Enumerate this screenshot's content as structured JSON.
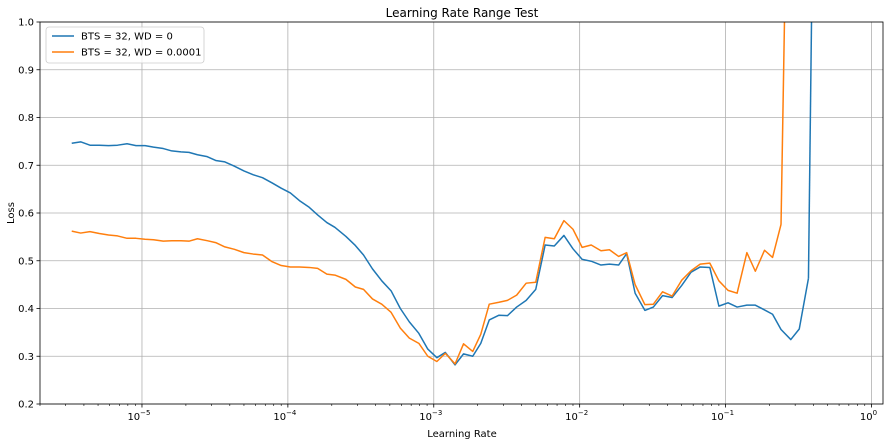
{
  "chart_data": {
    "type": "line",
    "title": "Learning Rate Range Test",
    "xlabel": "Learning Rate",
    "ylabel": "Loss",
    "x_scale": "log",
    "xlim": [
      2e-06,
      1.2
    ],
    "ylim": [
      0.2,
      1.0
    ],
    "x_ticks": [
      {
        "value": 1e-05,
        "base": "10",
        "exp": "−5"
      },
      {
        "value": 0.0001,
        "base": "10",
        "exp": "−4"
      },
      {
        "value": 0.001,
        "base": "10",
        "exp": "−3"
      },
      {
        "value": 0.01,
        "base": "10",
        "exp": "−2"
      },
      {
        "value": 0.1,
        "base": "10",
        "exp": "−1"
      },
      {
        "value": 1,
        "base": "10",
        "exp": "0"
      }
    ],
    "y_ticks": [
      "0.2",
      "0.3",
      "0.4",
      "0.5",
      "0.6",
      "0.7",
      "0.8",
      "0.9",
      "1.0"
    ],
    "grid": true,
    "legend_position": "top-left",
    "series": [
      {
        "name": "BTS = 32, WD = 0",
        "color": "#1f77b4",
        "x": [
          3.3e-06,
          3.8e-06,
          4.4e-06,
          5.1e-06,
          5.9e-06,
          6.8e-06,
          7.9e-06,
          9.1e-06,
          1.05e-05,
          1.2e-05,
          1.4e-05,
          1.6e-05,
          1.85e-05,
          2.1e-05,
          2.4e-05,
          2.8e-05,
          3.2e-05,
          3.7e-05,
          4.3e-05,
          5e-05,
          5.8e-05,
          6.7e-05,
          7.8e-05,
          9e-05,
          0.000104,
          0.00012,
          0.00014,
          0.00016,
          0.000185,
          0.00021,
          0.00025,
          0.00029,
          0.00033,
          0.00038,
          0.00044,
          0.00051,
          0.00059,
          0.00068,
          0.00079,
          0.00091,
          0.00105,
          0.0012,
          0.0014,
          0.0016,
          0.00185,
          0.0021,
          0.0024,
          0.0028,
          0.0032,
          0.0037,
          0.0043,
          0.005,
          0.0058,
          0.0067,
          0.0078,
          0.009,
          0.0104,
          0.012,
          0.014,
          0.016,
          0.0185,
          0.021,
          0.024,
          0.028,
          0.032,
          0.037,
          0.043,
          0.05,
          0.058,
          0.067,
          0.078,
          0.09,
          0.104,
          0.12,
          0.14,
          0.16,
          0.185,
          0.21,
          0.24,
          0.28,
          0.32,
          0.37
        ],
        "y": [
          0.746,
          0.749,
          0.742,
          0.742,
          0.741,
          0.742,
          0.745,
          0.741,
          0.741,
          0.738,
          0.735,
          0.73,
          0.728,
          0.727,
          0.722,
          0.718,
          0.71,
          0.707,
          0.698,
          0.688,
          0.68,
          0.674,
          0.663,
          0.652,
          0.642,
          0.626,
          0.612,
          0.596,
          0.58,
          0.57,
          0.551,
          0.532,
          0.512,
          0.483,
          0.458,
          0.437,
          0.4,
          0.372,
          0.348,
          0.315,
          0.297,
          0.308,
          0.282,
          0.305,
          0.3,
          0.327,
          0.376,
          0.386,
          0.385,
          0.403,
          0.417,
          0.44,
          0.533,
          0.531,
          0.553,
          0.525,
          0.503,
          0.499,
          0.491,
          0.493,
          0.491,
          0.515,
          0.432,
          0.396,
          0.403,
          0.427,
          0.423,
          0.448,
          0.476,
          0.487,
          0.486,
          0.405,
          0.412,
          0.403,
          0.407,
          0.407,
          0.397,
          0.388,
          0.356,
          0.335,
          0.357,
          0.463
        ]
      },
      {
        "name": "BTS = 32, WD = 0.0001",
        "color": "#ff7f0e",
        "x": [
          3.3e-06,
          3.8e-06,
          4.4e-06,
          5.1e-06,
          5.9e-06,
          6.8e-06,
          7.9e-06,
          9.1e-06,
          1.05e-05,
          1.2e-05,
          1.4e-05,
          1.6e-05,
          1.85e-05,
          2.1e-05,
          2.4e-05,
          2.8e-05,
          3.2e-05,
          3.7e-05,
          4.3e-05,
          5e-05,
          5.8e-05,
          6.7e-05,
          7.8e-05,
          9e-05,
          0.000104,
          0.00012,
          0.00014,
          0.00016,
          0.000185,
          0.00021,
          0.00025,
          0.00029,
          0.00033,
          0.00038,
          0.00044,
          0.00051,
          0.00059,
          0.00068,
          0.00079,
          0.00091,
          0.00105,
          0.0012,
          0.0014,
          0.0016,
          0.00185,
          0.0021,
          0.0024,
          0.0028,
          0.0032,
          0.0037,
          0.0043,
          0.005,
          0.0058,
          0.0067,
          0.0078,
          0.009,
          0.0104,
          0.012,
          0.014,
          0.016,
          0.0185,
          0.021,
          0.024,
          0.028,
          0.032,
          0.037,
          0.043,
          0.05,
          0.058,
          0.067,
          0.078,
          0.09,
          0.104,
          0.12,
          0.14,
          0.16,
          0.185,
          0.21,
          0.24
        ],
        "y": [
          0.562,
          0.558,
          0.561,
          0.557,
          0.554,
          0.552,
          0.547,
          0.547,
          0.545,
          0.544,
          0.541,
          0.542,
          0.542,
          0.541,
          0.546,
          0.542,
          0.538,
          0.529,
          0.524,
          0.517,
          0.514,
          0.512,
          0.498,
          0.49,
          0.487,
          0.487,
          0.486,
          0.484,
          0.472,
          0.47,
          0.461,
          0.445,
          0.44,
          0.42,
          0.409,
          0.392,
          0.359,
          0.338,
          0.327,
          0.3,
          0.289,
          0.306,
          0.284,
          0.326,
          0.31,
          0.346,
          0.409,
          0.413,
          0.417,
          0.428,
          0.453,
          0.455,
          0.549,
          0.546,
          0.584,
          0.566,
          0.528,
          0.533,
          0.521,
          0.523,
          0.509,
          0.517,
          0.45,
          0.408,
          0.409,
          0.435,
          0.426,
          0.459,
          0.479,
          0.493,
          0.495,
          0.458,
          0.438,
          0.432,
          0.517,
          0.478,
          0.522,
          0.507,
          0.576
        ]
      },
      {
        "name": "BTS = 32, WD = 0.0001",
        "color": "#ff7f0e",
        "x": [
          0.24,
          0.255
        ],
        "y": [
          0.576,
          1.05
        ]
      },
      {
        "name": "BTS = 32, WD = 0",
        "color": "#1f77b4",
        "x": [
          0.37,
          0.39
        ],
        "y": [
          0.463,
          1.05
        ]
      }
    ]
  }
}
